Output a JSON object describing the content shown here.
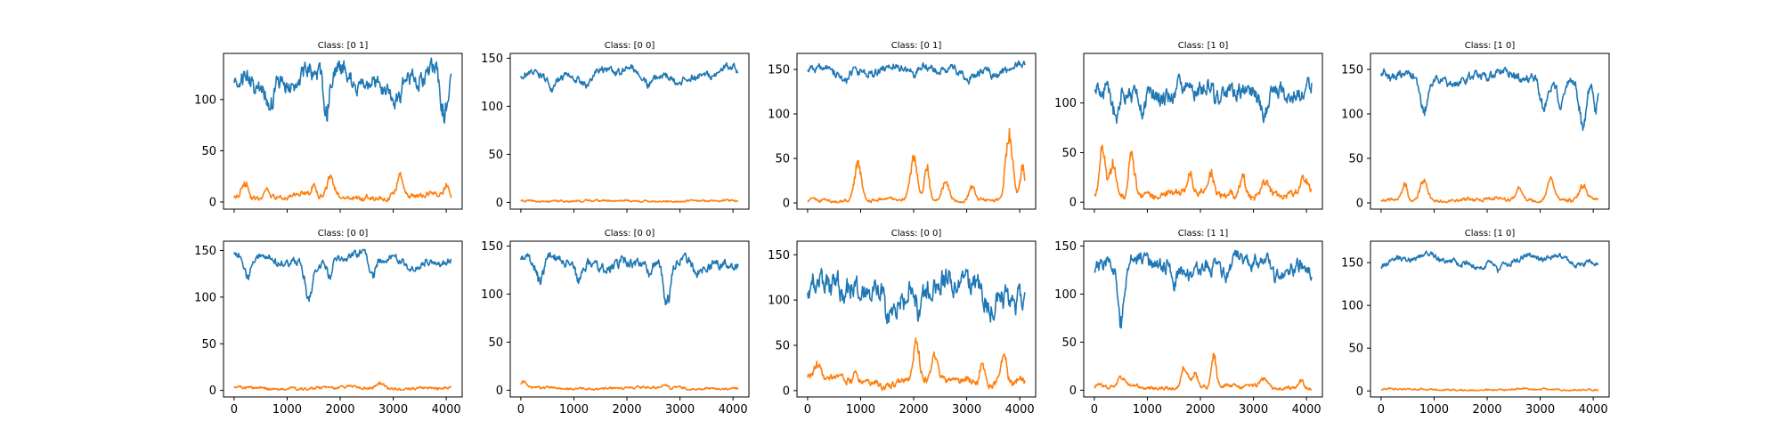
{
  "chart_data": {
    "type": "line",
    "layout": {
      "rows": 2,
      "cols": 5
    },
    "colors": {
      "series_0": "#1f77b4",
      "series_1": "#ff7f0e"
    },
    "shared_x_ticks": [
      "0",
      "1000",
      "2000",
      "3000",
      "4000"
    ],
    "xlim": [
      -200,
      4300
    ],
    "x_range": [
      0,
      4096
    ],
    "subplots": [
      {
        "title": "Class: [0 1]",
        "ylim": [
          -7,
          145
        ],
        "yticks": [
          0,
          50,
          100
        ],
        "blue": {
          "base": 120,
          "amp": 8,
          "noise": 7,
          "dips": [
            [
              700,
              28
            ],
            [
              1750,
              45
            ],
            [
              3100,
              25
            ],
            [
              3950,
              50
            ],
            [
              3000,
              12
            ]
          ]
        },
        "orange": {
          "base": 5,
          "amp": 2,
          "noise": 2,
          "peaks": [
            [
              200,
              18
            ],
            [
              600,
              10
            ],
            [
              1500,
              12
            ],
            [
              1820,
              20
            ],
            [
              3130,
              25
            ],
            [
              4000,
              12
            ]
          ]
        }
      },
      {
        "title": "Class: [0 0]",
        "ylim": [
          -7,
          155
        ],
        "yticks": [
          0,
          50,
          100,
          150
        ],
        "blue": {
          "base": 133,
          "amp": 5,
          "noise": 3,
          "dips": [
            [
              600,
              10
            ],
            [
              1250,
              10
            ],
            [
              2400,
              12
            ],
            [
              3300,
              8
            ]
          ]
        },
        "orange": {
          "base": 1.5,
          "amp": 0.5,
          "noise": 0.8,
          "peaks": []
        }
      },
      {
        "title": "Class: [0 1]",
        "ylim": [
          -7,
          168
        ],
        "yticks": [
          0,
          50,
          100,
          150
        ],
        "blue": {
          "base": 150,
          "amp": 4,
          "noise": 3.5,
          "dips": [
            [
              700,
              10
            ],
            [
              2000,
              12
            ],
            [
              3000,
              10
            ],
            [
              3500,
              8
            ]
          ]
        },
        "orange": {
          "base": 3,
          "amp": 1.5,
          "noise": 1.5,
          "peaks": [
            [
              950,
              48
            ],
            [
              2000,
              50
            ],
            [
              2250,
              45
            ],
            [
              2600,
              25
            ],
            [
              3100,
              20
            ],
            [
              3800,
              82
            ],
            [
              4050,
              40
            ]
          ]
        }
      },
      {
        "title": "Class: [1 0]",
        "ylim": [
          -7,
          150
        ],
        "yticks": [
          0,
          50,
          100
        ],
        "blue": {
          "base": 112,
          "amp": 6,
          "noise": 7,
          "dips": [
            [
              400,
              38
            ],
            [
              900,
              20
            ],
            [
              2300,
              18
            ],
            [
              3200,
              15
            ]
          ]
        },
        "orange": {
          "base": 8,
          "amp": 3,
          "noise": 3,
          "peaks": [
            [
              150,
              55
            ],
            [
              350,
              35
            ],
            [
              700,
              52
            ],
            [
              1800,
              25
            ],
            [
              2200,
              20
            ],
            [
              2800,
              22
            ],
            [
              3200,
              20
            ],
            [
              3950,
              12
            ]
          ]
        }
      },
      {
        "title": "Class: [1 0]",
        "ylim": [
          -7,
          168
        ],
        "yticks": [
          0,
          50,
          100,
          150
        ],
        "blue": {
          "base": 140,
          "amp": 6,
          "noise": 4,
          "dips": [
            [
              800,
              40
            ],
            [
              3050,
              35
            ],
            [
              3400,
              30
            ],
            [
              3800,
              55
            ],
            [
              4050,
              40
            ]
          ]
        },
        "orange": {
          "base": 3,
          "amp": 1.5,
          "noise": 1.5,
          "peaks": [
            [
              450,
              20
            ],
            [
              800,
              28
            ],
            [
              2600,
              15
            ],
            [
              3200,
              32
            ],
            [
              3800,
              20
            ]
          ]
        }
      },
      {
        "title": "Class: [0 0]",
        "ylim": [
          -7,
          160
        ],
        "yticks": [
          0,
          50,
          100,
          150
        ],
        "blue": {
          "base": 140,
          "amp": 5,
          "noise": 3,
          "dips": [
            [
              250,
              25
            ],
            [
              1400,
              40
            ],
            [
              1800,
              25
            ],
            [
              2600,
              20
            ]
          ]
        },
        "orange": {
          "base": 2.5,
          "amp": 1,
          "noise": 1.2,
          "peaks": [
            [
              2750,
              6
            ]
          ]
        }
      },
      {
        "title": "Class: [0 0]",
        "ylim": [
          -7,
          155
        ],
        "yticks": [
          0,
          50,
          100,
          150
        ],
        "blue": {
          "base": 133,
          "amp": 4,
          "noise": 4,
          "dips": [
            [
              350,
              25
            ],
            [
              1100,
              20
            ],
            [
              2450,
              20
            ],
            [
              2750,
              50
            ],
            [
              3300,
              12
            ]
          ]
        },
        "orange": {
          "base": 2,
          "amp": 0.8,
          "noise": 1,
          "peaks": [
            [
              50,
              6
            ],
            [
              2700,
              5
            ]
          ]
        }
      },
      {
        "title": "Class: [0 0]",
        "ylim": [
          -7,
          165
        ],
        "yticks": [
          0,
          50,
          100,
          150
        ],
        "blue": {
          "base": 110,
          "amp": 10,
          "noise": 11,
          "dips": [
            [
              700,
              25
            ],
            [
              1500,
              20
            ],
            [
              2100,
              25
            ],
            [
              3400,
              15
            ]
          ]
        },
        "orange": {
          "base": 10,
          "amp": 4,
          "noise": 3,
          "peaks": [
            [
              200,
              18
            ],
            [
              900,
              15
            ],
            [
              2050,
              50
            ],
            [
              2400,
              25
            ],
            [
              3300,
              30
            ],
            [
              3700,
              35
            ],
            [
              4000,
              10
            ]
          ]
        }
      },
      {
        "title": "Class: [1 1]",
        "ylim": [
          -7,
          155
        ],
        "yticks": [
          0,
          50,
          100,
          150
        ],
        "blue": {
          "base": 130,
          "amp": 6,
          "noise": 6,
          "dips": [
            [
              500,
              65
            ],
            [
              1500,
              20
            ],
            [
              2500,
              18
            ],
            [
              3400,
              20
            ]
          ]
        },
        "orange": {
          "base": 3,
          "amp": 1.5,
          "noise": 1.5,
          "peaks": [
            [
              500,
              10
            ],
            [
              1700,
              25
            ],
            [
              1900,
              15
            ],
            [
              2250,
              38
            ],
            [
              3200,
              10
            ],
            [
              3900,
              10
            ]
          ]
        }
      },
      {
        "title": "Class: [1 0]",
        "ylim": [
          -7,
          175
        ],
        "yticks": [
          0,
          50,
          100,
          150
        ],
        "blue": {
          "base": 152,
          "amp": 5,
          "noise": 2.5,
          "dips": [
            [
              1500,
              8
            ],
            [
              2200,
              10
            ]
          ]
        },
        "orange": {
          "base": 1.5,
          "amp": 0.5,
          "noise": 0.8,
          "peaks": []
        }
      }
    ]
  }
}
